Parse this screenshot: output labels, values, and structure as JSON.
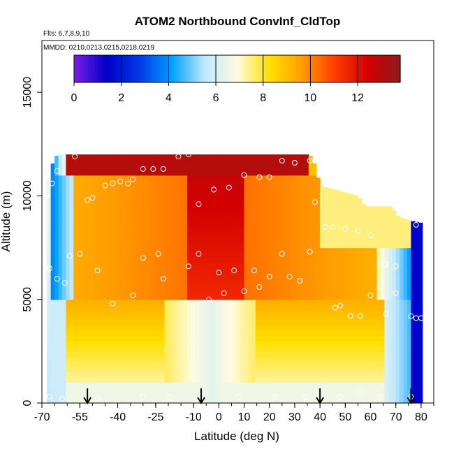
{
  "chart_data": {
    "type": "heatmap",
    "title": "ATOM2 Northbound ConvInf_CldTop",
    "subtitle_flights": "Flts: 6,7,8,9,10",
    "subtitle_dates": "MMDD: 0210,0213,0215,0218,0219",
    "xlabel": "Latitude (deg N)",
    "ylabel": "Altitude (m)",
    "xlim": [
      -70,
      85
    ],
    "ylim": [
      0,
      17500
    ],
    "x_ticks": [
      -70,
      -55,
      -40,
      -25,
      -10,
      0,
      10,
      20,
      30,
      40,
      50,
      60,
      70,
      80
    ],
    "x_tick_labels": [
      "-70",
      "-55",
      "-40",
      "-25",
      "-10",
      "0",
      "10",
      "20",
      "30",
      "40",
      "50",
      "60",
      "70",
      "80"
    ],
    "y_ticks": [
      0,
      5000,
      10000,
      15000
    ],
    "y_tick_labels": [
      "0",
      "5000",
      "10000",
      "15000"
    ],
    "colorbar": {
      "min": 0,
      "max": 13.8,
      "ticks": [
        0,
        2,
        4,
        6,
        8,
        10,
        12
      ],
      "tick_labels": [
        "0",
        "2",
        "4",
        "6",
        "8",
        "10",
        "12"
      ],
      "colors": [
        "#7a1fe6",
        "#0000c8",
        "#0038e6",
        "#00a0ff",
        "#bfe8ff",
        "#fffbe0",
        "#ffe000",
        "#ff9c00",
        "#ff3c00",
        "#d20000",
        "#8c1c1c"
      ]
    },
    "profile_top_altitude": [
      [
        -68,
        10500
      ],
      [
        -66,
        11500
      ],
      [
        -64,
        12000
      ],
      [
        -60,
        12000
      ],
      [
        -50,
        12000
      ],
      [
        -40,
        12000
      ],
      [
        -30,
        12000
      ],
      [
        -20,
        12000
      ],
      [
        -10,
        12000
      ],
      [
        0,
        12000
      ],
      [
        10,
        12000
      ],
      [
        20,
        12000
      ],
      [
        30,
        12000
      ],
      [
        36,
        12000
      ],
      [
        38,
        11500
      ],
      [
        40,
        10500
      ],
      [
        55,
        10000
      ],
      [
        58,
        9500
      ],
      [
        68,
        9500
      ],
      [
        71,
        9000
      ],
      [
        76,
        8800
      ],
      [
        80,
        8700
      ]
    ],
    "samples": [
      [
        -68,
        10000
      ],
      [
        -66,
        10600
      ],
      [
        -64,
        11200
      ],
      [
        -62,
        11900
      ],
      [
        -57,
        11900
      ],
      [
        -52,
        9800
      ],
      [
        -50,
        9900
      ],
      [
        -45,
        10500
      ],
      [
        -42,
        10600
      ],
      [
        -39,
        10700
      ],
      [
        -36,
        10600
      ],
      [
        -34,
        10800
      ],
      [
        -30,
        11300
      ],
      [
        -26,
        11300
      ],
      [
        -22,
        11300
      ],
      [
        -16,
        11900
      ],
      [
        -12,
        12000
      ],
      [
        -8,
        9600
      ],
      [
        -2,
        10300
      ],
      [
        4,
        10400
      ],
      [
        10,
        11000
      ],
      [
        16,
        10900
      ],
      [
        20,
        10900
      ],
      [
        25,
        11700
      ],
      [
        30,
        11600
      ],
      [
        36,
        11700
      ],
      [
        38,
        9700
      ],
      [
        42,
        8500
      ],
      [
        45,
        8500
      ],
      [
        50,
        8400
      ],
      [
        55,
        8300
      ],
      [
        60,
        8100
      ],
      [
        64,
        6700
      ],
      [
        66,
        6700
      ],
      [
        70,
        6600
      ],
      [
        78,
        8600
      ],
      [
        -67,
        6500
      ],
      [
        -64,
        6000
      ],
      [
        -61,
        5800
      ],
      [
        -59,
        7100
      ],
      [
        -55,
        7200
      ],
      [
        -48,
        6400
      ],
      [
        -42,
        4800
      ],
      [
        -34,
        5200
      ],
      [
        -30,
        7000
      ],
      [
        -24,
        7200
      ],
      [
        -22,
        6000
      ],
      [
        -12,
        6600
      ],
      [
        -8,
        7200
      ],
      [
        -4,
        5000
      ],
      [
        0,
        6300
      ],
      [
        2,
        5300
      ],
      [
        6,
        6400
      ],
      [
        10,
        5400
      ],
      [
        14,
        6400
      ],
      [
        16,
        5600
      ],
      [
        20,
        6100
      ],
      [
        25,
        7200
      ],
      [
        28,
        6100
      ],
      [
        32,
        5900
      ],
      [
        36,
        7300
      ],
      [
        46,
        4600
      ],
      [
        48,
        4700
      ],
      [
        52,
        4200
      ],
      [
        56,
        4200
      ],
      [
        60,
        5200
      ],
      [
        64,
        5600
      ],
      [
        66,
        4300
      ],
      [
        70,
        5300
      ],
      [
        76,
        4200
      ],
      [
        78,
        4100
      ],
      [
        80,
        4100
      ],
      [
        -67,
        300
      ],
      [
        -62,
        200
      ],
      [
        -48,
        200
      ],
      [
        -30,
        300
      ],
      [
        -20,
        300
      ],
      [
        -8,
        200
      ],
      [
        8,
        300
      ],
      [
        22,
        300
      ],
      [
        34,
        300
      ],
      [
        48,
        300
      ],
      [
        56,
        500
      ],
      [
        64,
        300
      ],
      [
        76,
        300
      ]
    ],
    "arrows_latitude": [
      -52,
      -7,
      40,
      76
    ],
    "value_field_description_levels": [
      0,
      13.8
    ],
    "grid": false,
    "legend": "colorbar top"
  }
}
